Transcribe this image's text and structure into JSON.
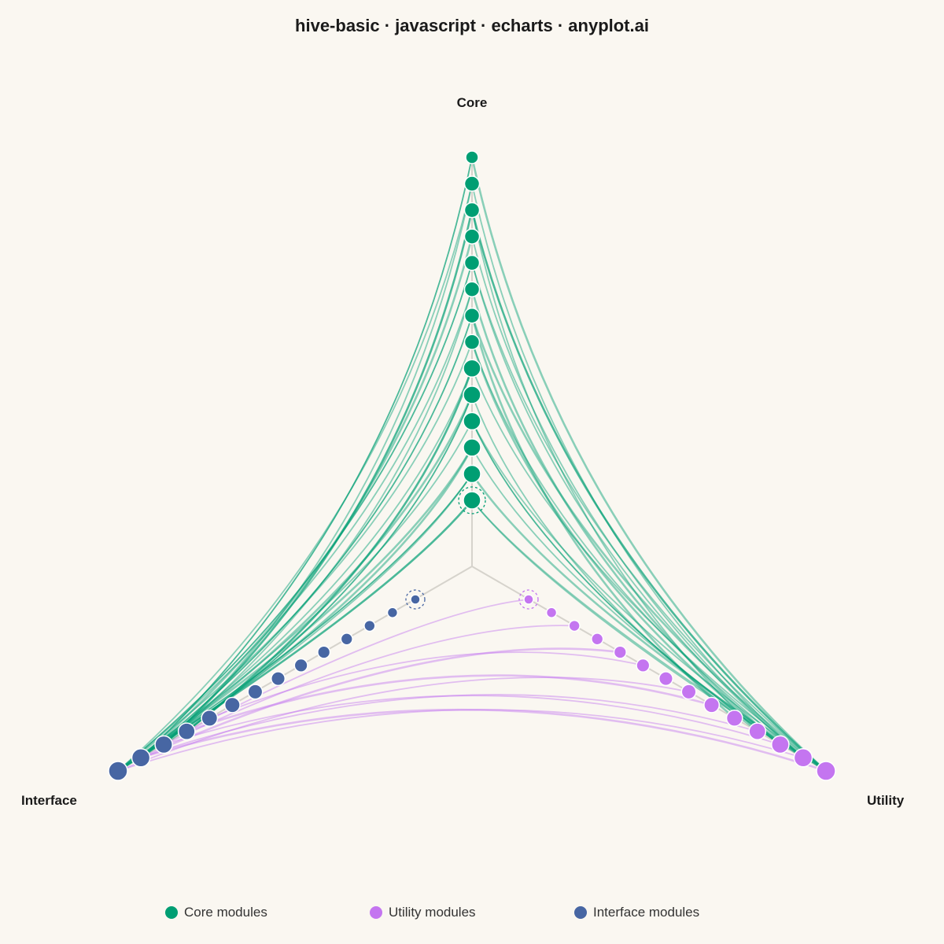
{
  "title": "hive-basic · javascript · echarts · anyplot.ai",
  "chart_data": {
    "type": "hive",
    "axes": [
      {
        "id": "core",
        "name": "Core",
        "color": "#009E73",
        "node_count": 14
      },
      {
        "id": "utility",
        "name": "Utility",
        "color": "#C475F0",
        "node_count": 14
      },
      {
        "id": "interface",
        "name": "Interface",
        "color": "#4766A3",
        "node_count": 14
      }
    ],
    "legend": [
      {
        "name": "Core modules",
        "color": "#009E73"
      },
      {
        "name": "Utility modules",
        "color": "#C475F0"
      },
      {
        "name": "Interface modules",
        "color": "#4766A3"
      }
    ],
    "edges": [
      {
        "source": "core.0",
        "target": "interface.13"
      },
      {
        "source": "core.0",
        "target": "utility.13"
      },
      {
        "source": "core.1",
        "target": "interface.12"
      },
      {
        "source": "core.1",
        "target": "utility.13"
      },
      {
        "source": "core.1",
        "target": "interface.13"
      },
      {
        "source": "core.2",
        "target": "utility.12"
      },
      {
        "source": "core.2",
        "target": "interface.11"
      },
      {
        "source": "core.3",
        "target": "interface.13"
      },
      {
        "source": "core.3",
        "target": "utility.11"
      },
      {
        "source": "core.4",
        "target": "interface.12"
      },
      {
        "source": "core.4",
        "target": "utility.10"
      },
      {
        "source": "core.5",
        "target": "utility.13"
      },
      {
        "source": "core.5",
        "target": "interface.10"
      },
      {
        "source": "core.6",
        "target": "interface.13"
      },
      {
        "source": "core.6",
        "target": "utility.12"
      },
      {
        "source": "core.7",
        "target": "utility.9"
      },
      {
        "source": "core.7",
        "target": "interface.12"
      },
      {
        "source": "core.8",
        "target": "interface.11"
      },
      {
        "source": "core.8",
        "target": "utility.11"
      },
      {
        "source": "core.9",
        "target": "utility.13"
      },
      {
        "source": "core.9",
        "target": "interface.13"
      },
      {
        "source": "core.10",
        "target": "interface.12"
      },
      {
        "source": "core.10",
        "target": "utility.12"
      },
      {
        "source": "core.11",
        "target": "utility.10"
      },
      {
        "source": "core.11",
        "target": "interface.11"
      },
      {
        "source": "core.12",
        "target": "interface.13"
      },
      {
        "source": "core.12",
        "target": "utility.12"
      },
      {
        "source": "core.13",
        "target": "utility.13"
      },
      {
        "source": "core.13",
        "target": "interface.12"
      },
      {
        "source": "core.0",
        "target": "utility.12"
      },
      {
        "source": "core.2",
        "target": "interface.13"
      },
      {
        "source": "core.3",
        "target": "utility.13"
      },
      {
        "source": "core.4",
        "target": "interface.10"
      },
      {
        "source": "core.6",
        "target": "utility.11"
      },
      {
        "source": "core.8",
        "target": "interface.13"
      },
      {
        "source": "core.9",
        "target": "utility.12"
      },
      {
        "source": "core.11",
        "target": "utility.13"
      },
      {
        "source": "core.12",
        "target": "interface.11"
      },
      {
        "source": "core.5",
        "target": "interface.12"
      },
      {
        "source": "core.7",
        "target": "utility.13"
      },
      {
        "source": "utility.0",
        "target": "interface.10"
      },
      {
        "source": "utility.2",
        "target": "interface.11"
      },
      {
        "source": "utility.4",
        "target": "interface.12"
      },
      {
        "source": "utility.5",
        "target": "interface.9"
      },
      {
        "source": "utility.7",
        "target": "interface.13"
      },
      {
        "source": "utility.8",
        "target": "interface.10"
      },
      {
        "source": "utility.10",
        "target": "interface.12"
      },
      {
        "source": "utility.11",
        "target": "interface.11"
      },
      {
        "source": "utility.13",
        "target": "interface.12"
      },
      {
        "source": "utility.12",
        "target": "interface.13"
      }
    ]
  }
}
